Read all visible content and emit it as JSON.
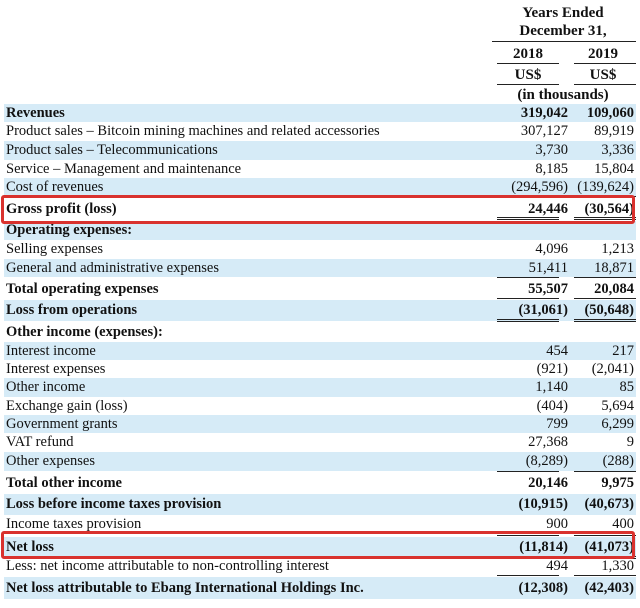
{
  "header": {
    "period_line1": "Years Ended",
    "period_line2": "December 31,",
    "year1": "2018",
    "year2": "2019",
    "currency1": "US$",
    "currency2": "US$",
    "units": "(in thousands)"
  },
  "rows": [
    {
      "label": "Revenues",
      "v2018": "319,042",
      "v2019": "109,060",
      "bold": true
    },
    {
      "label": "Product sales – Bitcoin mining machines and related accessories",
      "v2018": "307,127",
      "v2019": "89,919"
    },
    {
      "label": "Product sales – Telecommunications",
      "v2018": "3,730",
      "v2019": "3,336"
    },
    {
      "label": "Service – Management and maintenance",
      "v2018": "8,185",
      "v2019": "15,804"
    },
    {
      "label": "Cost of revenues",
      "v2018": "(294,596)",
      "v2019": "(139,624)"
    },
    {
      "label": "Gross profit (loss)",
      "v2018": "24,446",
      "v2019": "(30,564)",
      "bold": true
    },
    {
      "label": "Operating expenses:",
      "v2018": "",
      "v2019": "",
      "bold": true
    },
    {
      "label": "Selling expenses",
      "v2018": "4,096",
      "v2019": "1,213"
    },
    {
      "label": "General and administrative expenses",
      "v2018": "51,411",
      "v2019": "18,871"
    },
    {
      "label": "Total operating expenses",
      "v2018": "55,507",
      "v2019": "20,084",
      "bold": true
    },
    {
      "label": "Loss from operations",
      "v2018": "(31,061)",
      "v2019": "(50,648)",
      "bold": true
    },
    {
      "label": "Other income (expenses):",
      "v2018": "",
      "v2019": "",
      "bold": true
    },
    {
      "label": "Interest income",
      "v2018": "454",
      "v2019": "217"
    },
    {
      "label": "Interest expenses",
      "v2018": "(921)",
      "v2019": "(2,041)"
    },
    {
      "label": "Other income",
      "v2018": "1,140",
      "v2019": "85"
    },
    {
      "label": "Exchange gain (loss)",
      "v2018": "(404)",
      "v2019": "5,694"
    },
    {
      "label": "Government grants",
      "v2018": "799",
      "v2019": "6,299"
    },
    {
      "label": "VAT refund",
      "v2018": "27,368",
      "v2019": "9"
    },
    {
      "label": "Other expenses",
      "v2018": "(8,289)",
      "v2019": "(288)"
    },
    {
      "label": "Total other income",
      "v2018": "20,146",
      "v2019": "9,975",
      "bold": true
    },
    {
      "label": "Loss before income taxes provision",
      "v2018": "(10,915)",
      "v2019": "(40,673)",
      "bold": true
    },
    {
      "label": "Income taxes provision",
      "v2018": "900",
      "v2019": "400"
    },
    {
      "label": "Net loss",
      "v2018": "(11,814)",
      "v2019": "(41,073)",
      "bold": true
    },
    {
      "label": "Less: net income attributable to non-controlling interest",
      "v2018": "494",
      "v2019": "1,330"
    },
    {
      "label": "Net loss attributable to Ebang International Holdings Inc.",
      "v2018": "(12,308)",
      "v2019": "(42,403)",
      "bold": true
    }
  ],
  "colors": {
    "shade": "#d6ebf7",
    "highlight": "#d9322e"
  }
}
